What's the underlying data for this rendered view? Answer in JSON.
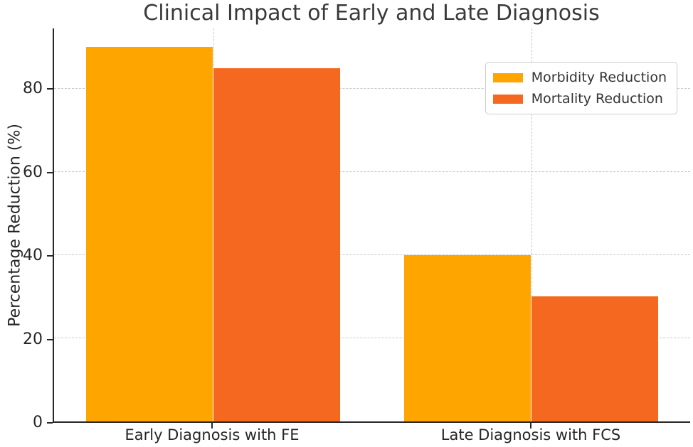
{
  "chart_data": {
    "type": "bar",
    "title": "Clinical Impact of Early and Late Diagnosis",
    "ylabel": "Percentage Reduction (%)",
    "categories": [
      "Early Diagnosis with FE",
      "Late Diagnosis with FCS"
    ],
    "series": [
      {
        "name": "Morbidity Reduction",
        "color": "#FFA500",
        "values": [
          90,
          40
        ]
      },
      {
        "name": "Mortality Reduction",
        "color": "#F4691F",
        "values": [
          85,
          30
        ]
      }
    ],
    "yticks": [
      0,
      20,
      40,
      60,
      80
    ],
    "ylim": [
      0,
      94.5
    ],
    "grid": "dashed",
    "legend_position": "upper-right"
  },
  "style_colors": {
    "background": "#ffffff",
    "axis": "#262626",
    "tick_text": "#262626",
    "title_text": "#3a3a3a",
    "grid": "#c9c9c9",
    "legend_border": "#cccccc",
    "legend_text": "#333333"
  }
}
